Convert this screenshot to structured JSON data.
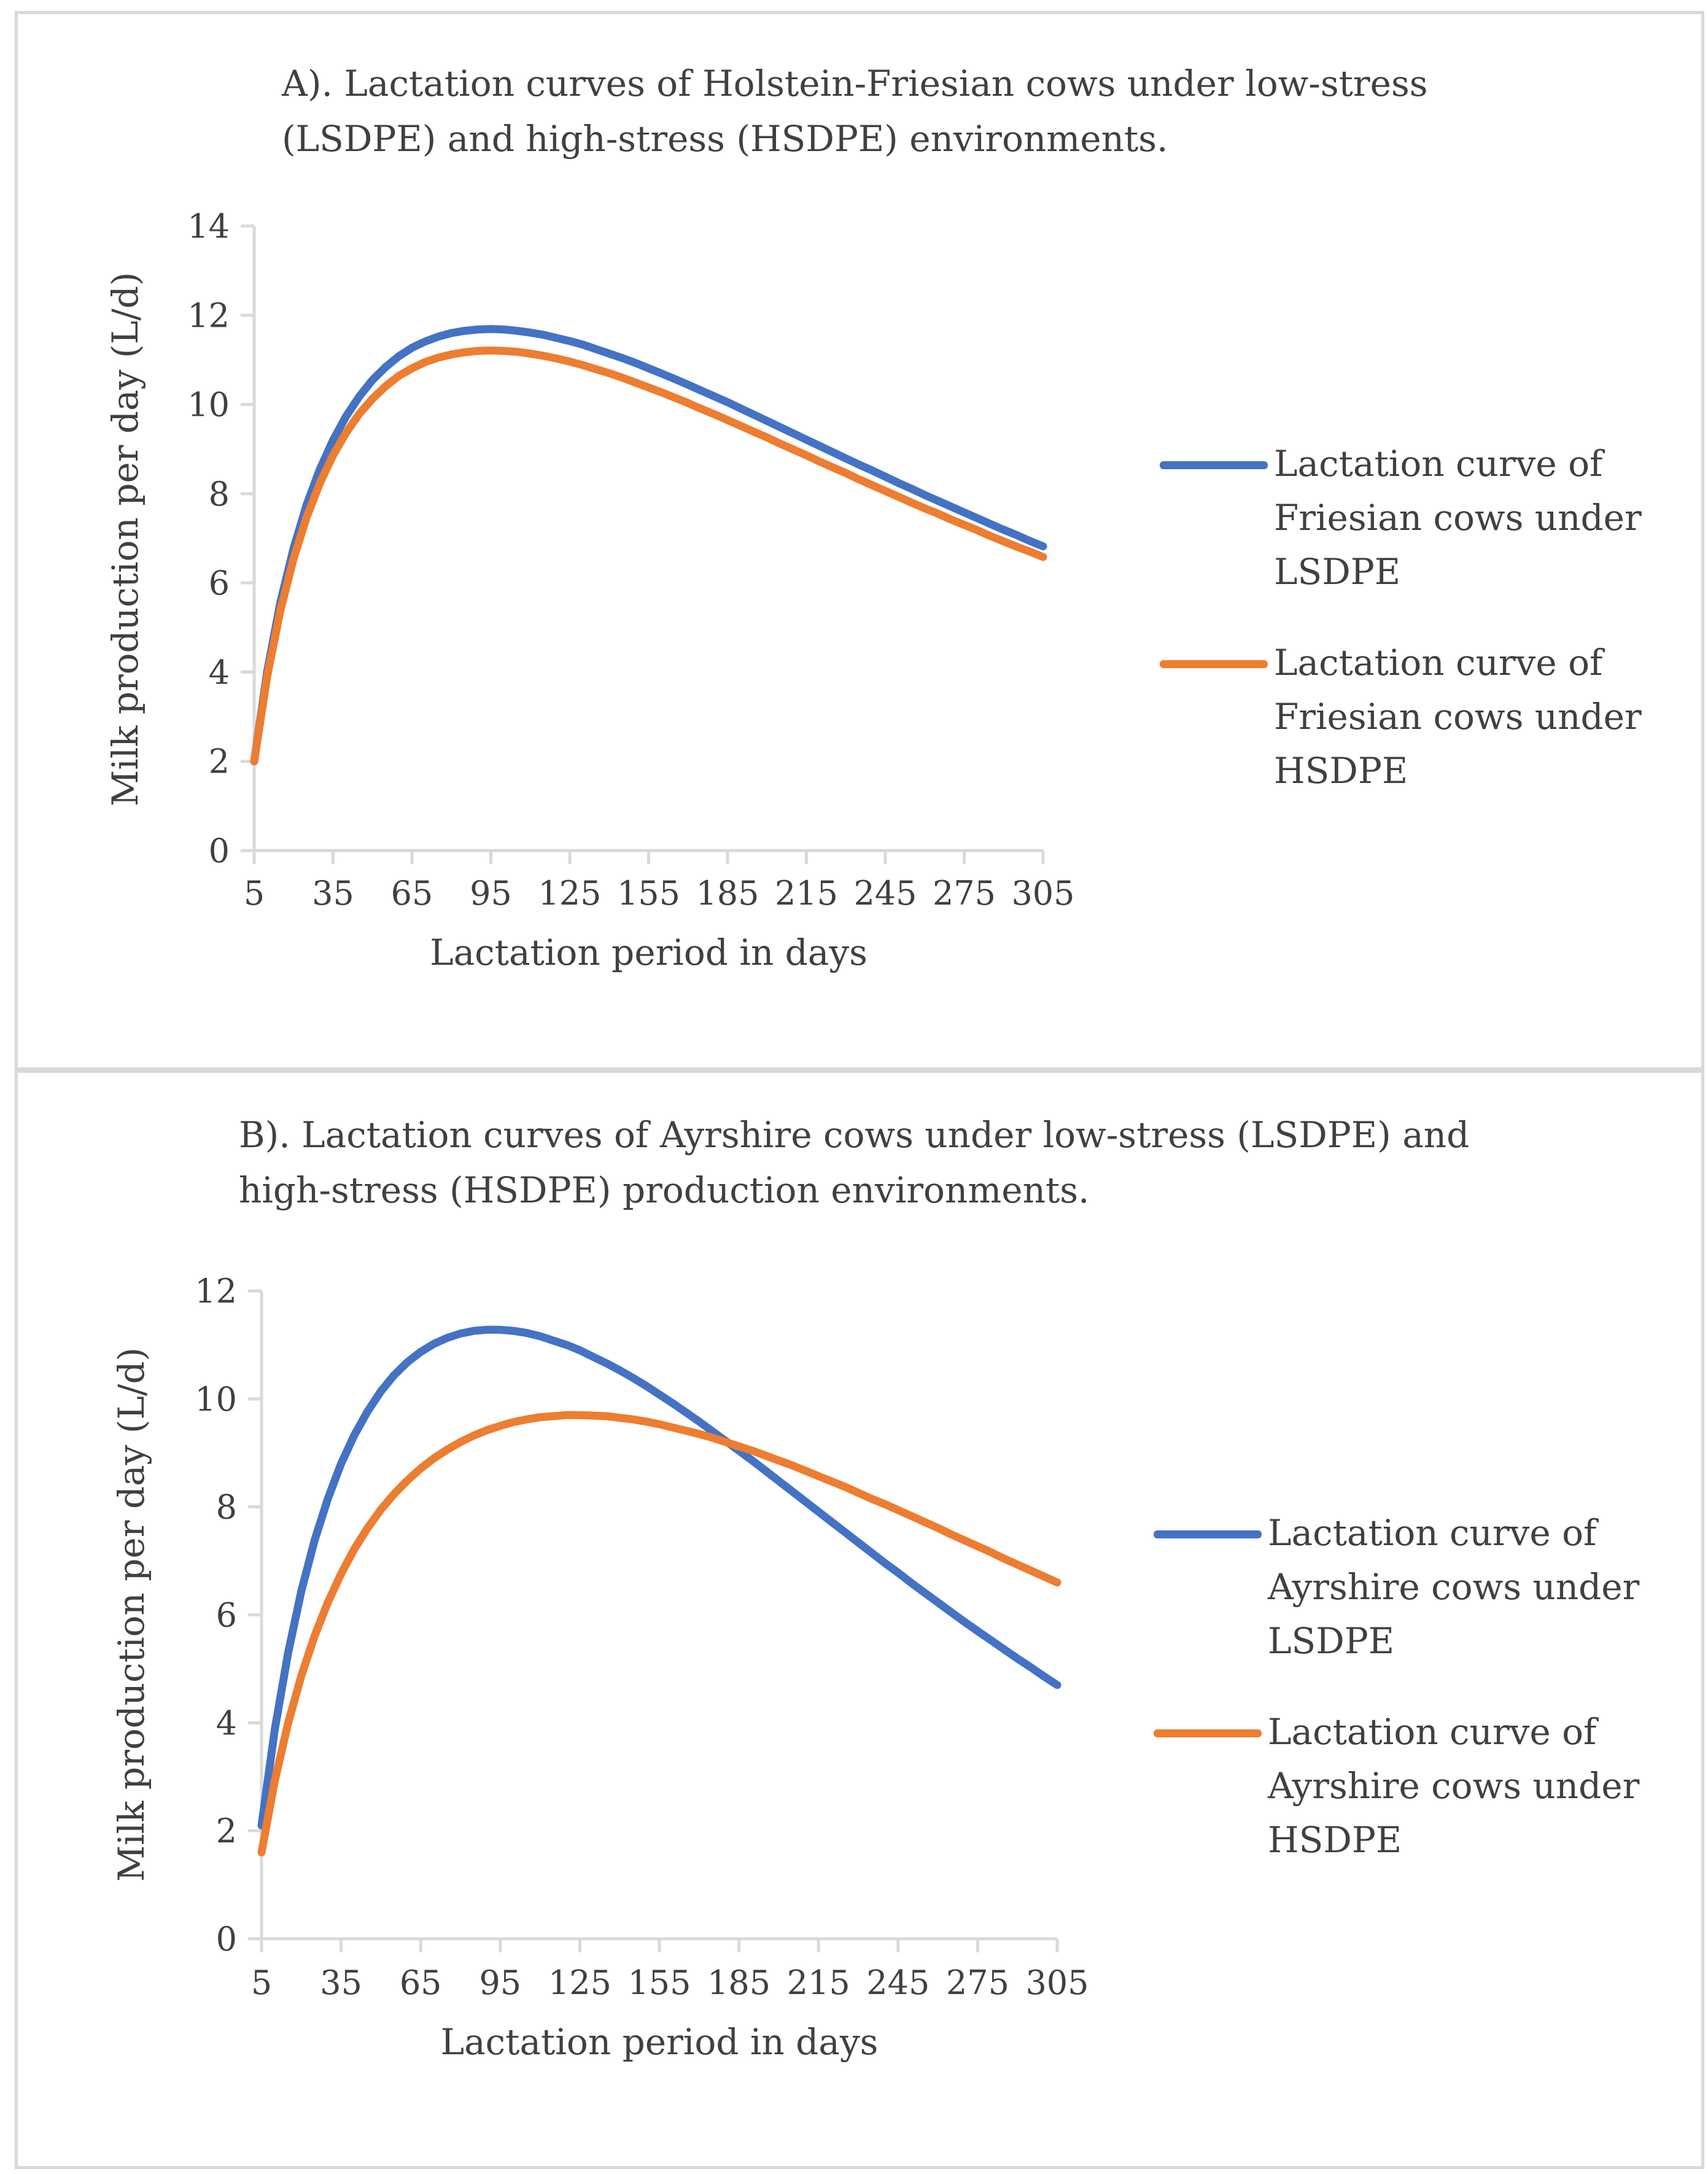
{
  "chart_data": [
    {
      "id": "A",
      "type": "line",
      "title": "A). Lactation curves of Holstein-Friesian cows under low-stress (LSDPE) and high-stress (HSDPE) environments.",
      "xlabel": "Lactation period in days",
      "ylabel": "Milk production per day (L/d)",
      "categories": [
        "5",
        "35",
        "65",
        "95",
        "125",
        "155",
        "185",
        "215",
        "245",
        "275",
        "305"
      ],
      "xlim": [
        5,
        305
      ],
      "ylim": [
        0,
        14
      ],
      "yticks": [
        "0",
        "2",
        "4",
        "6",
        "8",
        "10",
        "12",
        "14"
      ],
      "x": [
        5,
        10,
        15,
        20,
        25,
        30,
        35,
        40,
        45,
        50,
        55,
        60,
        65,
        70,
        75,
        80,
        85,
        90,
        95,
        100,
        105,
        110,
        115,
        120,
        125,
        130,
        135,
        140,
        145,
        150,
        155,
        160,
        165,
        170,
        175,
        180,
        185,
        190,
        195,
        200,
        205,
        210,
        215,
        220,
        225,
        230,
        235,
        240,
        245,
        250,
        255,
        260,
        265,
        270,
        275,
        280,
        285,
        290,
        295,
        300,
        305
      ],
      "legend_position": "right",
      "grid": false,
      "series": [
        {
          "name": "Lactation curve of Friesian cows under LSDPE",
          "color": "#4472C4",
          "values": [
            2.0,
            4.03,
            5.57,
            6.78,
            7.76,
            8.55,
            9.2,
            9.74,
            10.18,
            10.55,
            10.84,
            11.08,
            11.27,
            11.41,
            11.52,
            11.6,
            11.65,
            11.68,
            11.69,
            11.68,
            11.65,
            11.61,
            11.56,
            11.49,
            11.42,
            11.34,
            11.24,
            11.14,
            11.04,
            10.93,
            10.81,
            10.69,
            10.57,
            10.44,
            10.31,
            10.18,
            10.05,
            9.91,
            9.77,
            9.63,
            9.49,
            9.35,
            9.21,
            9.07,
            8.93,
            8.79,
            8.65,
            8.52,
            8.38,
            8.24,
            8.11,
            7.97,
            7.84,
            7.71,
            7.58,
            7.45,
            7.32,
            7.19,
            7.07,
            6.94,
            6.82
          ]
        },
        {
          "name": "Lactation curve of Friesian cows under HSDPE",
          "color": "#ED7D31",
          "values": [
            2.0,
            3.92,
            5.39,
            6.55,
            7.48,
            8.24,
            8.86,
            9.37,
            9.79,
            10.13,
            10.41,
            10.64,
            10.81,
            10.95,
            11.05,
            11.12,
            11.17,
            11.2,
            11.21,
            11.2,
            11.18,
            11.14,
            11.09,
            11.03,
            10.96,
            10.88,
            10.79,
            10.7,
            10.6,
            10.49,
            10.38,
            10.27,
            10.15,
            10.03,
            9.9,
            9.78,
            9.65,
            9.52,
            9.39,
            9.26,
            9.12,
            8.99,
            8.86,
            8.72,
            8.59,
            8.46,
            8.32,
            8.19,
            8.06,
            7.93,
            7.8,
            7.67,
            7.55,
            7.42,
            7.3,
            7.18,
            7.05,
            6.93,
            6.81,
            6.7,
            6.58
          ]
        }
      ]
    },
    {
      "id": "B",
      "type": "line",
      "title": "B). Lactation curves of Ayrshire cows under low-stress (LSDPE) and high-stress (HSDPE) production environments.",
      "xlabel": "Lactation period in days",
      "ylabel": "Milk production per day (L/d)",
      "categories": [
        "5",
        "35",
        "65",
        "95",
        "125",
        "155",
        "185",
        "215",
        "245",
        "275",
        "305"
      ],
      "xlim": [
        5,
        305
      ],
      "ylim": [
        0,
        12
      ],
      "yticks": [
        "0",
        "2",
        "4",
        "6",
        "8",
        "10",
        "12"
      ],
      "x": [
        5,
        10,
        15,
        20,
        25,
        30,
        35,
        40,
        45,
        50,
        55,
        60,
        65,
        70,
        75,
        80,
        85,
        90,
        95,
        100,
        105,
        110,
        115,
        120,
        125,
        130,
        135,
        140,
        145,
        150,
        155,
        160,
        165,
        170,
        175,
        180,
        185,
        190,
        195,
        200,
        205,
        210,
        215,
        220,
        225,
        230,
        235,
        240,
        245,
        250,
        255,
        260,
        265,
        270,
        275,
        280,
        285,
        290,
        295,
        300,
        305
      ],
      "legend_position": "right",
      "grid": false,
      "series": [
        {
          "name": "Lactation curve of Ayrshire cows under LSDPE",
          "color": "#4472C4",
          "values": [
            2.1,
            3.88,
            5.29,
            6.44,
            7.38,
            8.15,
            8.8,
            9.33,
            9.77,
            10.14,
            10.44,
            10.68,
            10.87,
            11.02,
            11.13,
            11.21,
            11.26,
            11.28,
            11.28,
            11.26,
            11.22,
            11.16,
            11.08,
            11.0,
            10.9,
            10.78,
            10.66,
            10.53,
            10.39,
            10.24,
            10.08,
            9.92,
            9.75,
            9.58,
            9.4,
            9.22,
            9.04,
            8.86,
            8.67,
            8.48,
            8.29,
            8.1,
            7.91,
            7.72,
            7.53,
            7.34,
            7.15,
            6.96,
            6.78,
            6.59,
            6.41,
            6.23,
            6.05,
            5.87,
            5.7,
            5.53,
            5.36,
            5.19,
            5.03,
            4.86,
            4.7
          ]
        },
        {
          "name": "Lactation curve of Ayrshire cows under HSDPE",
          "color": "#ED7D31",
          "values": [
            1.6,
            2.93,
            3.99,
            4.87,
            5.61,
            6.23,
            6.76,
            7.22,
            7.61,
            7.95,
            8.24,
            8.49,
            8.71,
            8.9,
            9.06,
            9.2,
            9.32,
            9.42,
            9.5,
            9.57,
            9.62,
            9.66,
            9.68,
            9.7,
            9.7,
            9.69,
            9.68,
            9.65,
            9.62,
            9.58,
            9.53,
            9.47,
            9.41,
            9.35,
            9.28,
            9.2,
            9.12,
            9.04,
            8.95,
            8.86,
            8.77,
            8.67,
            8.57,
            8.47,
            8.37,
            8.26,
            8.15,
            8.05,
            7.94,
            7.83,
            7.72,
            7.61,
            7.49,
            7.38,
            7.27,
            7.16,
            7.04,
            6.93,
            6.82,
            6.71,
            6.6
          ]
        }
      ]
    }
  ]
}
